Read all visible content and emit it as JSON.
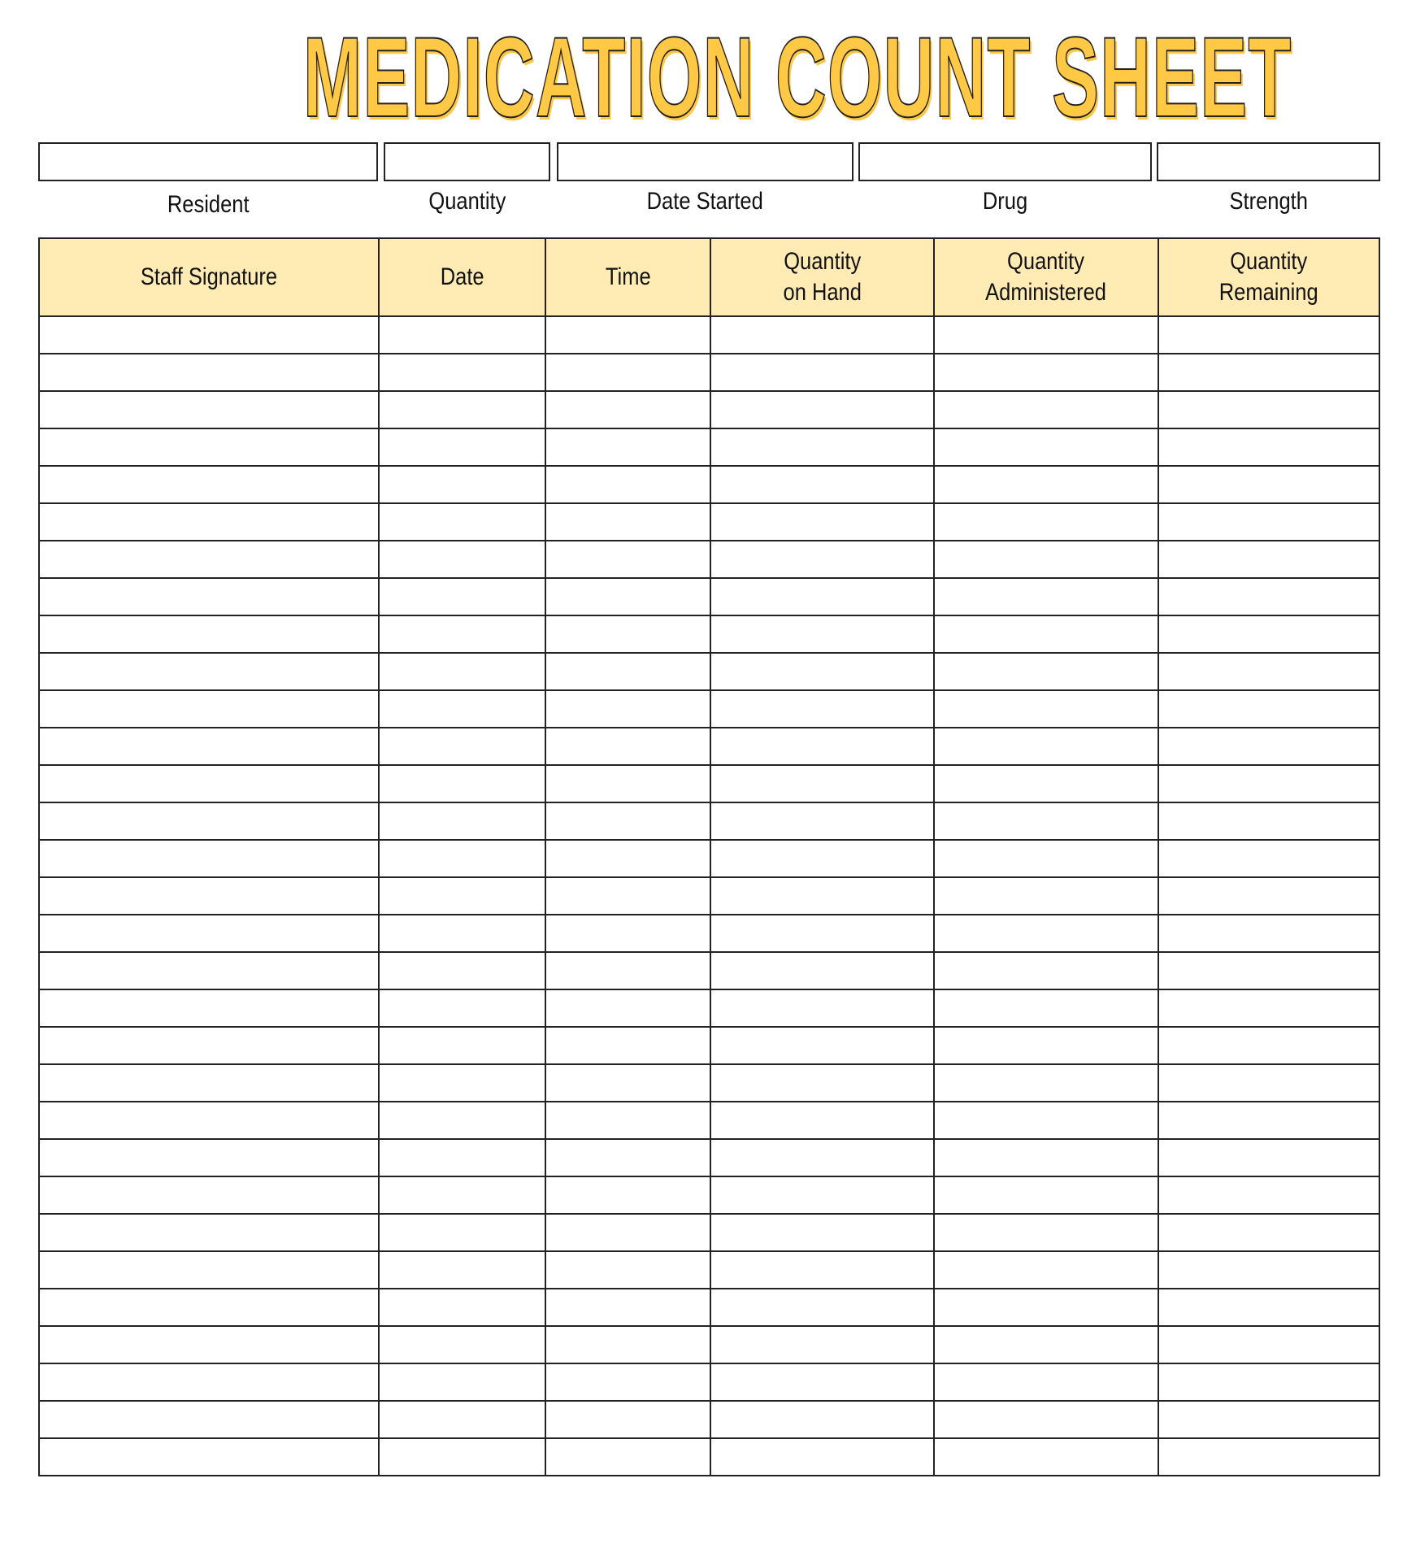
{
  "title": "MEDICATION COUNT SHEET",
  "colors": {
    "title_fill": "#FFC845",
    "header_fill": "#FFEBB3",
    "line": "#222222"
  },
  "info_fields": [
    {
      "label": "Resident",
      "value": ""
    },
    {
      "label": "Quantity",
      "value": ""
    },
    {
      "label": "Date Started",
      "value": ""
    },
    {
      "label": "Drug",
      "value": ""
    },
    {
      "label": "Strength",
      "value": ""
    }
  ],
  "table": {
    "columns": [
      "Staff Signature",
      "Date",
      "Time",
      "Quantity\non Hand",
      "Quantity\nAdministered",
      "Quantity\nRemaining"
    ],
    "row_count": 31
  }
}
